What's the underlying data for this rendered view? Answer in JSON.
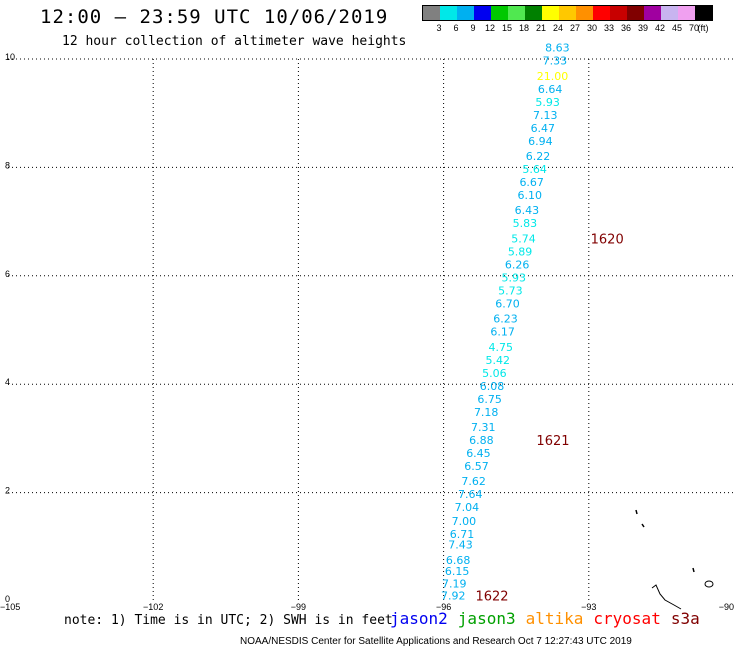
{
  "header": {
    "title": "12:00 – 23:59 UTC 10/06/2019",
    "subtitle": "12 hour collection of altimeter wave heights"
  },
  "legend": {
    "swatches": [
      {
        "color": "#808080",
        "label": "3"
      },
      {
        "color": "#00e8e8",
        "label": "6"
      },
      {
        "color": "#00b0f0",
        "label": "9"
      },
      {
        "color": "#0000f0",
        "label": "12"
      },
      {
        "color": "#00c800",
        "label": "15"
      },
      {
        "color": "#50e850",
        "label": "18"
      },
      {
        "color": "#008000",
        "label": "21"
      },
      {
        "color": "#ffff00",
        "label": "24"
      },
      {
        "color": "#ffc800",
        "label": "27"
      },
      {
        "color": "#ff9000",
        "label": "30"
      },
      {
        "color": "#ff0000",
        "label": "33"
      },
      {
        "color": "#c80000",
        "label": "36"
      },
      {
        "color": "#800000",
        "label": "39"
      },
      {
        "color": "#a000a0",
        "label": "42"
      },
      {
        "color": "#c8b4f0",
        "label": "45"
      },
      {
        "color": "#f0a0f0",
        "label": "70"
      },
      {
        "color": "#000000",
        "label": "(ft)"
      }
    ]
  },
  "chart_data": {
    "type": "scatter",
    "xlim": [
      -105,
      -90
    ],
    "ylim": [
      0,
      10
    ],
    "xticks": [
      {
        "v": -105,
        "label": "−105"
      },
      {
        "v": -102,
        "label": "−102"
      },
      {
        "v": -99,
        "label": "−99"
      },
      {
        "v": -96,
        "label": "−96"
      },
      {
        "v": -93,
        "label": "−93"
      },
      {
        "v": -90,
        "label": "−90"
      }
    ],
    "yticks": [
      {
        "v": 0,
        "label": "0"
      },
      {
        "v": 2,
        "label": "2"
      },
      {
        "v": 4,
        "label": "4"
      },
      {
        "v": 6,
        "label": "6"
      },
      {
        "v": 8,
        "label": "8"
      },
      {
        "v": 10,
        "label": "10"
      }
    ],
    "grid": true,
    "points": [
      {
        "x": -95.8,
        "y": 0.1,
        "label": "7.92",
        "color": "#00b0f0"
      },
      {
        "x": -95.78,
        "y": 0.32,
        "label": "7.19",
        "color": "#00b0f0"
      },
      {
        "x": -95.72,
        "y": 0.55,
        "label": "6.15",
        "color": "#00b0f0"
      },
      {
        "x": -95.7,
        "y": 0.76,
        "label": "6.68",
        "color": "#00b0f0"
      },
      {
        "x": -95.65,
        "y": 1.04,
        "label": "7.43",
        "color": "#00b0f0"
      },
      {
        "x": -95.62,
        "y": 1.24,
        "label": "6.71",
        "color": "#00b0f0"
      },
      {
        "x": -95.58,
        "y": 1.48,
        "label": "7.00",
        "color": "#00b0f0"
      },
      {
        "x": -95.52,
        "y": 1.73,
        "label": "7.04",
        "color": "#00b0f0"
      },
      {
        "x": -95.45,
        "y": 1.97,
        "label": "7.64",
        "color": "#00b0f0"
      },
      {
        "x": -95.38,
        "y": 2.21,
        "label": "7.62",
        "color": "#00b0f0"
      },
      {
        "x": -95.32,
        "y": 2.49,
        "label": "6.57",
        "color": "#00b0f0"
      },
      {
        "x": -95.28,
        "y": 2.73,
        "label": "6.45",
        "color": "#00b0f0"
      },
      {
        "x": -95.22,
        "y": 2.97,
        "label": "6.88",
        "color": "#00b0f0"
      },
      {
        "x": -95.18,
        "y": 3.21,
        "label": "7.31",
        "color": "#00b0f0"
      },
      {
        "x": -95.12,
        "y": 3.49,
        "label": "7.18",
        "color": "#00b0f0"
      },
      {
        "x": -95.05,
        "y": 3.73,
        "label": "6.75",
        "color": "#00b0f0"
      },
      {
        "x": -95.0,
        "y": 3.97,
        "label": "6.08",
        "color": "#00b0f0"
      },
      {
        "x": -94.95,
        "y": 4.21,
        "label": "5.06",
        "color": "#00e8e8"
      },
      {
        "x": -94.88,
        "y": 4.45,
        "label": "5.42",
        "color": "#00e8e8"
      },
      {
        "x": -94.82,
        "y": 4.69,
        "label": "4.75",
        "color": "#00e8e8"
      },
      {
        "x": -94.78,
        "y": 4.97,
        "label": "6.17",
        "color": "#00b0f0"
      },
      {
        "x": -94.72,
        "y": 5.21,
        "label": "6.23",
        "color": "#00b0f0"
      },
      {
        "x": -94.68,
        "y": 5.49,
        "label": "6.70",
        "color": "#00b0f0"
      },
      {
        "x": -94.62,
        "y": 5.73,
        "label": "5.73",
        "color": "#00e8e8"
      },
      {
        "x": -94.55,
        "y": 5.97,
        "label": "5.93",
        "color": "#00e8e8"
      },
      {
        "x": -94.48,
        "y": 6.21,
        "label": "6.26",
        "color": "#00b0f0"
      },
      {
        "x": -94.42,
        "y": 6.45,
        "label": "5.89",
        "color": "#00e8e8"
      },
      {
        "x": -94.35,
        "y": 6.69,
        "label": "5.74",
        "color": "#00e8e8"
      },
      {
        "x": -94.32,
        "y": 6.97,
        "label": "5.83",
        "color": "#00e8e8"
      },
      {
        "x": -94.28,
        "y": 7.21,
        "label": "6.43",
        "color": "#00b0f0"
      },
      {
        "x": -94.22,
        "y": 7.49,
        "label": "6.10",
        "color": "#00b0f0"
      },
      {
        "x": -94.18,
        "y": 7.73,
        "label": "6.67",
        "color": "#00b0f0"
      },
      {
        "x": -94.12,
        "y": 7.97,
        "label": "5.64",
        "color": "#00e8e8"
      },
      {
        "x": -94.05,
        "y": 8.21,
        "label": "6.22",
        "color": "#00b0f0"
      },
      {
        "x": -94.0,
        "y": 8.49,
        "label": "6.94",
        "color": "#00b0f0"
      },
      {
        "x": -93.95,
        "y": 8.73,
        "label": "6.47",
        "color": "#00b0f0"
      },
      {
        "x": -93.9,
        "y": 8.97,
        "label": "7.13",
        "color": "#00b0f0"
      },
      {
        "x": -93.85,
        "y": 9.21,
        "label": "5.93",
        "color": "#00e8e8"
      },
      {
        "x": -93.8,
        "y": 9.45,
        "label": "6.64",
        "color": "#00b0f0"
      },
      {
        "x": -93.75,
        "y": 9.69,
        "label": "21.00",
        "color": "#ffff00"
      },
      {
        "x": -93.7,
        "y": 9.97,
        "label": "7.33",
        "color": "#00b0f0"
      },
      {
        "x": -93.65,
        "y": 10.21,
        "label": "8.63",
        "color": "#00b0f0"
      }
    ],
    "time_labels": [
      {
        "x": -92.62,
        "y": 6.69,
        "label": "1620"
      },
      {
        "x": -93.74,
        "y": 2.97,
        "label": "1621"
      },
      {
        "x": -95.0,
        "y": 0.1,
        "label": "1622"
      }
    ],
    "time_label_color": "#800000"
  },
  "note": "note: 1) Time is in UTC; 2) SWH is in feet",
  "satellites": [
    {
      "name": "jason2",
      "color": "#0000f0"
    },
    {
      "name": "jason3",
      "color": "#00a000"
    },
    {
      "name": "altika",
      "color": "#ff9000"
    },
    {
      "name": "cryosat",
      "color": "#ff0000"
    },
    {
      "name": "s3a",
      "color": "#800000"
    }
  ],
  "footer": "NOAA/NESDIS Center for Satellite Applications and Research   Oct  7 12:27:43 UTC 2019"
}
